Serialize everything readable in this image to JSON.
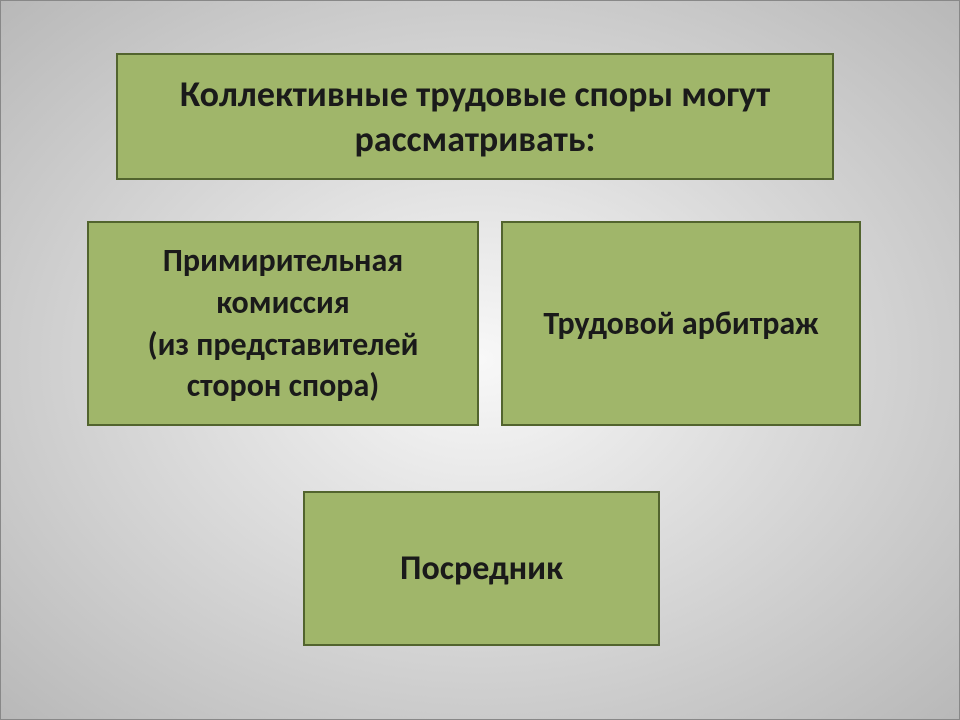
{
  "slide": {
    "background_gradient": {
      "center": "#f8f8f8",
      "mid": "#d8d8d8",
      "edge": "#b8b8b8"
    },
    "box_fill_color": "#a0b66a",
    "box_border_color": "#52642e",
    "box_border_width": 2,
    "text_color": "#1a1a1a",
    "font_family": "Calibri",
    "title": {
      "text": "Коллективные  трудовые споры могут рассматривать:",
      "font_size": 36,
      "font_weight": "bold"
    },
    "boxes": {
      "left": {
        "text": "Примирительная комиссия\n(из представителей сторон спора)",
        "font_size": 32,
        "font_weight": "bold"
      },
      "right": {
        "text": "Трудовой арбитраж",
        "font_size": 32,
        "font_weight": "bold"
      },
      "bottom": {
        "text": "Посредник",
        "font_size": 34,
        "font_weight": "bold"
      }
    }
  }
}
